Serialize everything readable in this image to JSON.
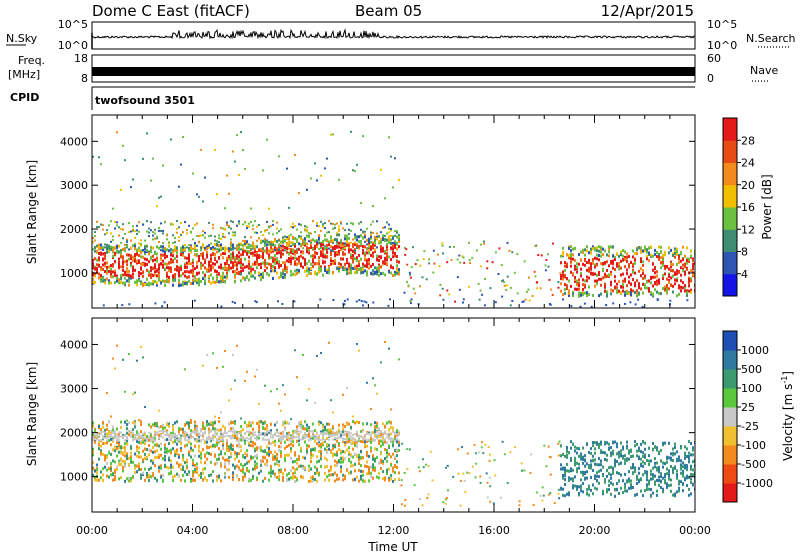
{
  "header": {
    "station": "Dome C East (fitACF)",
    "beam": "Beam 05",
    "date": "12/Apr/2015"
  },
  "noise_panel": {
    "left_label": "N.Sky",
    "right_label": "N.Search",
    "left_ticks": [
      "10^5",
      "10^0"
    ],
    "right_ticks": [
      "10^5",
      "10^0"
    ]
  },
  "freq_panel": {
    "left_label_1": "Freq.",
    "left_label_2": "[MHz]",
    "right_label": "Nave",
    "left_ticks": [
      "18",
      "8"
    ],
    "right_ticks": [
      "60",
      "0"
    ]
  },
  "cpid": {
    "label": "CPID",
    "program": "twofsound 3501"
  },
  "chart_data": [
    {
      "type": "heatmap",
      "name": "power",
      "ylabel": "Slant Range [km]",
      "yticks": [
        "1000",
        "2000",
        "3000",
        "4000"
      ],
      "ylim": [
        200,
        4600
      ],
      "colorbar_label": "Power [dB]",
      "colorbar_ticks": [
        "4",
        "8",
        "12",
        "16",
        "20",
        "24",
        "28"
      ],
      "colorbar_colors": [
        "#1414e6",
        "#2e55b4",
        "#3e8c72",
        "#6cc040",
        "#f0c000",
        "#f28a1c",
        "#e84a14",
        "#e41a1a"
      ]
    },
    {
      "type": "heatmap",
      "name": "velocity",
      "ylabel": "Slant Range [km]",
      "yticks": [
        "1000",
        "2000",
        "3000",
        "4000"
      ],
      "ylim": [
        200,
        4600
      ],
      "xlabel": "Time UT",
      "xticks": [
        "00:00",
        "04:00",
        "08:00",
        "12:00",
        "16:00",
        "20:00",
        "00:00"
      ],
      "colorbar_label": "Velocity [m s",
      "colorbar_label_sup": "-1",
      "colorbar_label_end": "]",
      "colorbar_ticks": [
        "1000",
        "500",
        "100",
        "25",
        "-25",
        "-100",
        "-500",
        "-1000"
      ],
      "colorbar_colors": [
        "#1f4eb4",
        "#2e7aa0",
        "#3c9a70",
        "#5ac83c",
        "#c8c8c8",
        "#f0c030",
        "#f28a1c",
        "#f04a14",
        "#e41a1a"
      ]
    }
  ]
}
